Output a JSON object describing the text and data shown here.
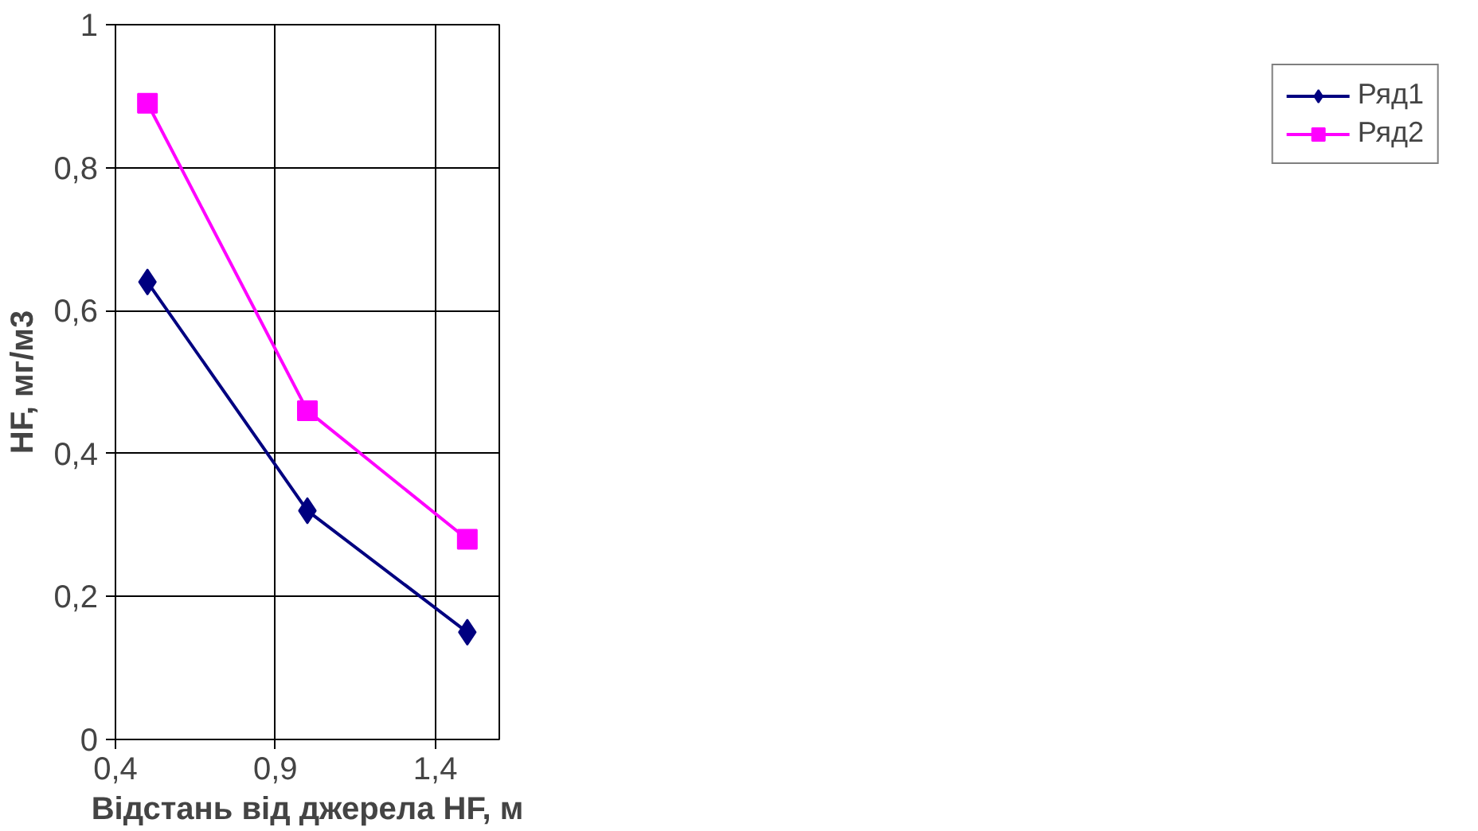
{
  "chart_data": {
    "type": "line",
    "xlabel": "Відстань від джерела HF, м",
    "ylabel": "HF, мг/м3",
    "x": [
      0.5,
      1.0,
      1.5
    ],
    "series": [
      {
        "name": "Ряд1",
        "color": "#000080",
        "values": [
          0.64,
          0.32,
          0.15
        ],
        "marker": "diamond"
      },
      {
        "name": "Ряд2",
        "color": "#ff00ff",
        "values": [
          0.89,
          0.46,
          0.28
        ],
        "marker": "square"
      }
    ],
    "xlim": [
      0.4,
      1.6
    ],
    "xticks": [
      {
        "value": 0.4,
        "label": "0,4"
      },
      {
        "value": 0.9,
        "label": "0,9"
      },
      {
        "value": 1.4,
        "label": "1,4"
      }
    ],
    "ylim": [
      0,
      1
    ],
    "yticks": [
      0,
      {
        "value": 0.2,
        "label": "0,2"
      },
      {
        "value": 0.4,
        "label": "0,4"
      },
      {
        "value": 0.6,
        "label": "0,6"
      },
      {
        "value": 0.8,
        "label": "0,8"
      },
      1
    ],
    "grid": true,
    "legend": "right",
    "line_style": "solid"
  }
}
